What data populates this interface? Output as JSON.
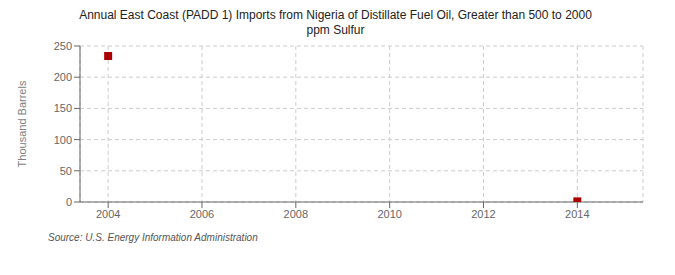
{
  "chart_data": {
    "type": "scatter",
    "title": "Annual East Coast (PADD 1) Imports from Nigeria of Distillate Fuel Oil, Greater than 500 to 2000\nppm Sulfur",
    "ylabel": "Thousand Barrels",
    "source": "Source: U.S. Energy Information Administration",
    "x": [
      2004,
      2014
    ],
    "values": [
      234,
      1
    ],
    "xlim": [
      2003.4,
      2015.4
    ],
    "ylim": [
      0,
      250
    ],
    "xticks": [
      2004,
      2006,
      2008,
      2010,
      2012,
      2014
    ],
    "yticks": [
      0,
      50,
      100,
      150,
      200,
      250
    ],
    "color": "#aa0000",
    "marker": "square",
    "grid": true
  }
}
